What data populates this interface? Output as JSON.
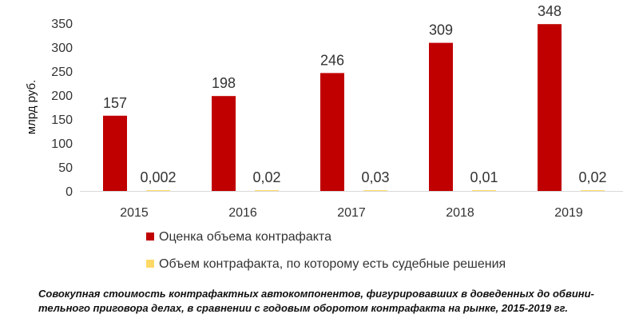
{
  "chart_data": {
    "type": "bar",
    "ylabel": "млрд руб.",
    "ylim": [
      0,
      350
    ],
    "yticks": [
      "0",
      "50",
      "100",
      "150",
      "200",
      "250",
      "300",
      "350"
    ],
    "categories": [
      "2015",
      "2016",
      "2017",
      "2018",
      "2019"
    ],
    "grid": false,
    "legend_position": "bottom",
    "series": [
      {
        "name": "Оценка объема контрафакта",
        "color": "#c00000",
        "values": [
          157,
          198,
          246,
          309,
          348
        ],
        "labels": [
          "157",
          "198",
          "246",
          "309",
          "348"
        ]
      },
      {
        "name": "Объем контрафакта, по которому есть судебные решения",
        "color": "#ffd966",
        "values": [
          0.002,
          0.02,
          0.03,
          0.01,
          0.02
        ],
        "labels": [
          "0,002",
          "0,02",
          "0,03",
          "0,01",
          "0,02"
        ]
      }
    ]
  },
  "caption": {
    "line1": "Совокупная стоимость контрафактных автокомпонентов, фигурировавших в доведенных до обвини-",
    "line2": "тельного приговора делах, в сравнении с годовым оборотом контрафакта на рынке, 2015-2019 гг."
  }
}
